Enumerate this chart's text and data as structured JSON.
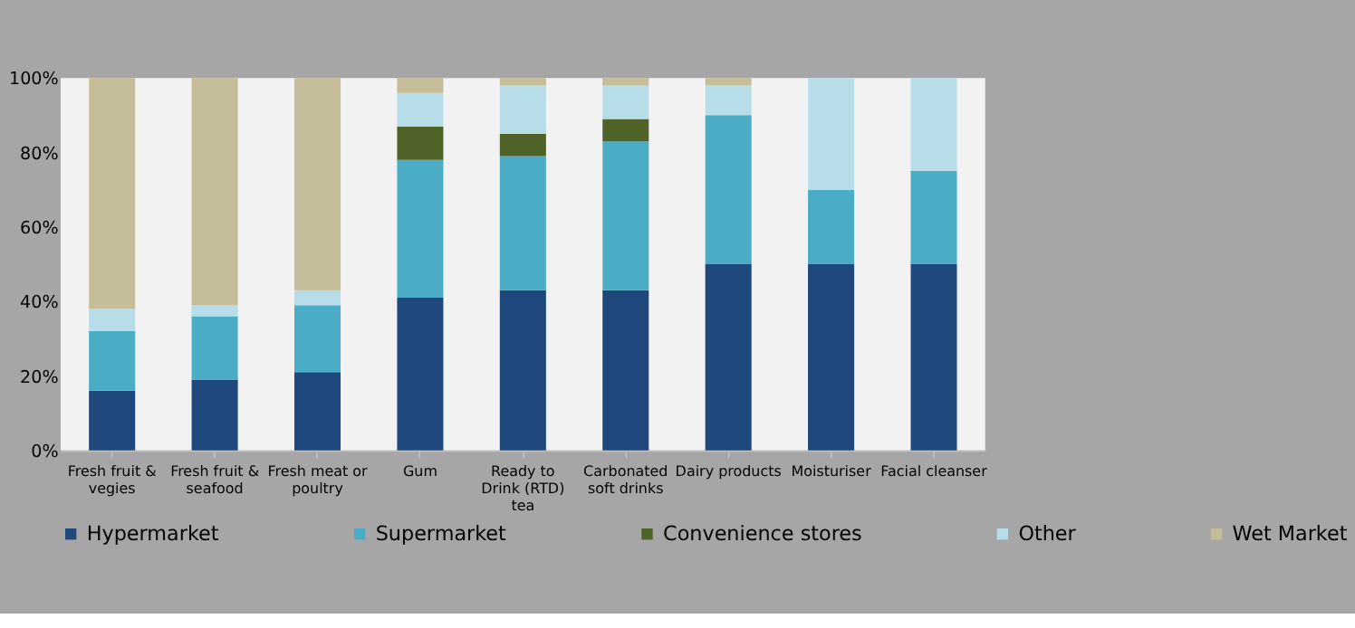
{
  "chart_data": {
    "type": "bar",
    "stacked": true,
    "categories": [
      "Fresh fruit &\nvegies",
      "Fresh fruit &\nseafood",
      "Fresh meat or\npoultry",
      "Gum",
      "Ready to\nDrink (RTD)\ntea",
      "Carbonated\nsoft drinks",
      "Dairy products",
      "Moisturiser",
      "Facial cleanser"
    ],
    "series": [
      {
        "name": "Hypermarket",
        "color": "#1f497d",
        "values": [
          16,
          19,
          21,
          41,
          43,
          43,
          50,
          50,
          50
        ]
      },
      {
        "name": "Supermarket",
        "color": "#4bacc6",
        "values": [
          16,
          17,
          18,
          37,
          36,
          40,
          40,
          20,
          25
        ]
      },
      {
        "name": "Convenience stores",
        "color": "#4f6228",
        "values": [
          0,
          0,
          0,
          9,
          6,
          6,
          0,
          0,
          0
        ]
      },
      {
        "name": "Other",
        "color": "#b7dee8",
        "values": [
          6,
          3,
          4,
          9,
          13,
          9,
          8,
          30,
          25
        ]
      },
      {
        "name": "Wet Market",
        "color": "#c4bd97",
        "values": [
          62,
          61,
          57,
          4,
          2,
          2,
          2,
          0,
          0
        ]
      }
    ],
    "ylim": [
      0,
      100
    ],
    "yticks": [
      {
        "value": 0,
        "label": "0%"
      },
      {
        "value": 20,
        "label": "20%"
      },
      {
        "value": 40,
        "label": "40%"
      },
      {
        "value": 60,
        "label": "60%"
      },
      {
        "value": 80,
        "label": "80%"
      },
      {
        "value": 100,
        "label": "100%"
      }
    ],
    "grid": false,
    "legend": "bottom"
  }
}
